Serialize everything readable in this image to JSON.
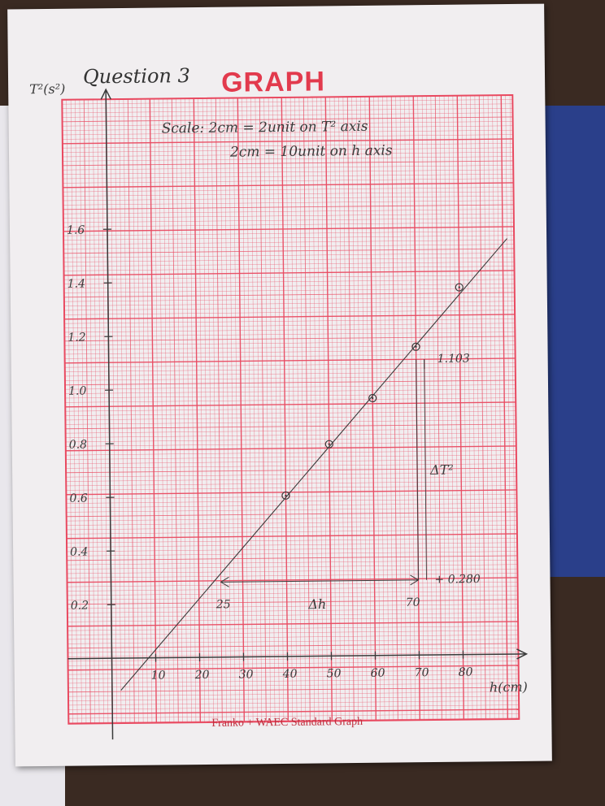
{
  "header": {
    "question": "Question 3",
    "title": "GRAPH"
  },
  "footer": "Franko + WAEC Standard Graph",
  "scale_note": {
    "line1": "Scale: 2cm = 2unit on T² axis",
    "line2": "2cm = 10unit on h axis"
  },
  "colors": {
    "grid": "#e94a61",
    "paper": "#f1eef0",
    "ink": "#3a3a3a"
  },
  "chart_data": {
    "type": "scatter",
    "xlabel": "h(cm)",
    "ylabel": "T²(s²)",
    "xlim": [
      0,
      86
    ],
    "ylim": [
      0,
      1.8
    ],
    "xticks": [
      10,
      20,
      30,
      40,
      50,
      60,
      70,
      80
    ],
    "xtick_labels": [
      "10",
      "20",
      "30",
      "40",
      "50",
      "60",
      "70",
      "80"
    ],
    "yticks": [
      0.2,
      0.4,
      0.6,
      0.8,
      1.0,
      1.2,
      1.4,
      1.6
    ],
    "ytick_labels": [
      "0.2",
      "0.4",
      "0.6",
      "0.8",
      "1.0",
      "1.2",
      "1.4",
      "1.6"
    ],
    "points": [
      {
        "x": 40,
        "y": 0.6
      },
      {
        "x": 50,
        "y": 0.79
      },
      {
        "x": 60,
        "y": 0.96
      },
      {
        "x": 70,
        "y": 1.15
      },
      {
        "x": 80,
        "y": 1.37
      }
    ],
    "best_fit": {
      "x1": 2,
      "y1": -0.12,
      "x2": 91,
      "y2": 1.55
    },
    "triangle": {
      "x_low": 25,
      "x_high": 70,
      "y_low": 0.28,
      "y_high": 1.103,
      "x_low_label": "25",
      "x_high_label": "70",
      "y_low_label": "0.280",
      "y_high_label": "1.103",
      "dx_label": "Δh",
      "dy_label": "ΔT²"
    },
    "grid": true
  }
}
